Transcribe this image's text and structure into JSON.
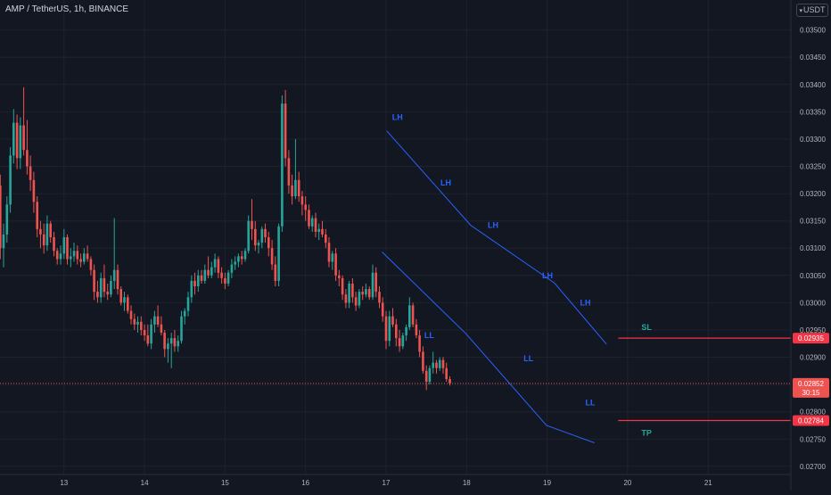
{
  "header": {
    "symbol_line": "AMP / TetherUS, 1h, BINANCE",
    "currency_label": "USDT"
  },
  "colors": {
    "background": "#131722",
    "up": "#26a69a",
    "down": "#ef5350",
    "text": "#b2b5be",
    "grid": "#1e222d",
    "channel": "#2962ff",
    "annotation_blue": "#2962ff",
    "sl_tp_label": "#26a69a",
    "level_line": "#f23645"
  },
  "chart_data": {
    "type": "candlestick",
    "symbol": "AMP / TetherUS",
    "interval": "1h",
    "exchange": "BINANCE",
    "ylim": [
      0.02685,
      0.03555
    ],
    "y_ticks": [
      "0.03500",
      "0.03450",
      "0.03400",
      "0.03350",
      "0.03300",
      "0.03250",
      "0.03200",
      "0.03150",
      "0.03100",
      "0.03050",
      "0.03000",
      "0.02950",
      "0.02900",
      "0.02850",
      "0.02800",
      "0.02750",
      "0.02700"
    ],
    "x_ticks": [
      "13",
      "14",
      "15",
      "16",
      "17",
      "18",
      "19",
      "20",
      "21"
    ],
    "x_tick_hours": [
      20,
      44,
      68,
      92,
      116,
      140,
      164,
      188,
      212
    ],
    "candles": [
      [
        0.03185,
        0.03225,
        0.03145,
        0.03215
      ],
      [
        0.03215,
        0.03235,
        0.0308,
        0.031
      ],
      [
        0.031,
        0.03145,
        0.03065,
        0.03125
      ],
      [
        0.03125,
        0.03195,
        0.0311,
        0.0318
      ],
      [
        0.0318,
        0.03285,
        0.03165,
        0.0327
      ],
      [
        0.0327,
        0.03355,
        0.03255,
        0.0333
      ],
      [
        0.0333,
        0.03345,
        0.03245,
        0.03265
      ],
      [
        0.03265,
        0.0334,
        0.03245,
        0.03325
      ],
      [
        0.03325,
        0.03395,
        0.0327,
        0.0328
      ],
      [
        0.0328,
        0.03335,
        0.03235,
        0.0325
      ],
      [
        0.0325,
        0.0327,
        0.03205,
        0.03225
      ],
      [
        0.03225,
        0.0324,
        0.03165,
        0.03185
      ],
      [
        0.03185,
        0.03195,
        0.0312,
        0.03135
      ],
      [
        0.03135,
        0.0315,
        0.031,
        0.03125
      ],
      [
        0.03125,
        0.03145,
        0.0309,
        0.03105
      ],
      [
        0.03105,
        0.0316,
        0.03095,
        0.03145
      ],
      [
        0.03145,
        0.0315,
        0.0311,
        0.0312
      ],
      [
        0.0312,
        0.0313,
        0.03085,
        0.03095
      ],
      [
        0.03095,
        0.031,
        0.0307,
        0.0308
      ],
      [
        0.0308,
        0.03105,
        0.0307,
        0.0309
      ],
      [
        0.0309,
        0.03135,
        0.0308,
        0.0312
      ],
      [
        0.0312,
        0.03125,
        0.0307,
        0.0308
      ],
      [
        0.0308,
        0.031,
        0.03065,
        0.03085
      ],
      [
        0.03085,
        0.0311,
        0.03075,
        0.03095
      ],
      [
        0.03095,
        0.03105,
        0.0307,
        0.0308
      ],
      [
        0.0308,
        0.0309,
        0.03065,
        0.03075
      ],
      [
        0.03075,
        0.031,
        0.0307,
        0.0309
      ],
      [
        0.0309,
        0.03105,
        0.03075,
        0.0308
      ],
      [
        0.0308,
        0.03085,
        0.0305,
        0.0306
      ],
      [
        0.0306,
        0.0307,
        0.03005,
        0.0302
      ],
      [
        0.0302,
        0.0304,
        0.03,
        0.0301
      ],
      [
        0.0301,
        0.03055,
        0.03,
        0.03045
      ],
      [
        0.03045,
        0.0307,
        0.0301,
        0.0302
      ],
      [
        0.0302,
        0.03035,
        0.03005,
        0.03015
      ],
      [
        0.03015,
        0.0305,
        0.0301,
        0.0304
      ],
      [
        0.0304,
        0.03155,
        0.03025,
        0.0306
      ],
      [
        0.0306,
        0.0307,
        0.03015,
        0.03025
      ],
      [
        0.03025,
        0.0303,
        0.02995,
        0.03
      ],
      [
        0.03,
        0.0302,
        0.02985,
        0.0301
      ],
      [
        0.0301,
        0.03015,
        0.0298,
        0.02985
      ],
      [
        0.02985,
        0.02995,
        0.0296,
        0.0297
      ],
      [
        0.0297,
        0.0298,
        0.0295,
        0.0296
      ],
      [
        0.0296,
        0.02975,
        0.02945,
        0.02965
      ],
      [
        0.02965,
        0.02975,
        0.0294,
        0.0295
      ],
      [
        0.0295,
        0.0296,
        0.0293,
        0.0294
      ],
      [
        0.0294,
        0.0296,
        0.0292,
        0.02925
      ],
      [
        0.02925,
        0.0297,
        0.02915,
        0.0296
      ],
      [
        0.0296,
        0.02985,
        0.02945,
        0.02975
      ],
      [
        0.02975,
        0.02995,
        0.02955,
        0.0296
      ],
      [
        0.0296,
        0.02975,
        0.0294,
        0.02945
      ],
      [
        0.02945,
        0.0295,
        0.029,
        0.02915
      ],
      [
        0.02915,
        0.02935,
        0.0289,
        0.02925
      ],
      [
        0.02925,
        0.02945,
        0.0288,
        0.02935
      ],
      [
        0.02935,
        0.0295,
        0.0291,
        0.0292
      ],
      [
        0.0292,
        0.0294,
        0.0291,
        0.0293
      ],
      [
        0.0293,
        0.02985,
        0.02925,
        0.02975
      ],
      [
        0.02975,
        0.0299,
        0.0296,
        0.02985
      ],
      [
        0.02985,
        0.0302,
        0.02975,
        0.0301
      ],
      [
        0.0301,
        0.0305,
        0.03,
        0.0304
      ],
      [
        0.0304,
        0.03055,
        0.03015,
        0.0303
      ],
      [
        0.0303,
        0.0306,
        0.0302,
        0.0305
      ],
      [
        0.0305,
        0.0306,
        0.03035,
        0.0304
      ],
      [
        0.0304,
        0.0307,
        0.03035,
        0.0306
      ],
      [
        0.0306,
        0.03085,
        0.03045,
        0.0305
      ],
      [
        0.0305,
        0.03075,
        0.03045,
        0.03065
      ],
      [
        0.03065,
        0.0309,
        0.03055,
        0.0308
      ],
      [
        0.0308,
        0.03085,
        0.03045,
        0.03055
      ],
      [
        0.03055,
        0.03065,
        0.03035,
        0.03045
      ],
      [
        0.03045,
        0.03055,
        0.03025,
        0.03035
      ],
      [
        0.03035,
        0.0306,
        0.0303,
        0.03055
      ],
      [
        0.03055,
        0.0308,
        0.03045,
        0.0307
      ],
      [
        0.0307,
        0.03085,
        0.0306,
        0.03075
      ],
      [
        0.03075,
        0.0309,
        0.03065,
        0.03085
      ],
      [
        0.03085,
        0.03095,
        0.0307,
        0.0308
      ],
      [
        0.0308,
        0.031,
        0.03075,
        0.03095
      ],
      [
        0.03095,
        0.0316,
        0.0309,
        0.0315
      ],
      [
        0.0315,
        0.0319,
        0.03115,
        0.03135
      ],
      [
        0.03135,
        0.0315,
        0.03095,
        0.03105
      ],
      [
        0.03105,
        0.03115,
        0.0309,
        0.0311
      ],
      [
        0.0311,
        0.0314,
        0.031,
        0.03135
      ],
      [
        0.03135,
        0.03145,
        0.0311,
        0.0312
      ],
      [
        0.0312,
        0.0313,
        0.03085,
        0.031
      ],
      [
        0.031,
        0.03115,
        0.0306,
        0.0307
      ],
      [
        0.0307,
        0.03085,
        0.0303,
        0.0304
      ],
      [
        0.0304,
        0.03145,
        0.0303,
        0.0314
      ],
      [
        0.0314,
        0.0338,
        0.0313,
        0.03365
      ],
      [
        0.03365,
        0.0339,
        0.0325,
        0.03265
      ],
      [
        0.03265,
        0.0328,
        0.032,
        0.03215
      ],
      [
        0.03215,
        0.03235,
        0.0318,
        0.03195
      ],
      [
        0.03195,
        0.033,
        0.0319,
        0.03225
      ],
      [
        0.03225,
        0.0324,
        0.03185,
        0.03195
      ],
      [
        0.03195,
        0.03205,
        0.0316,
        0.0318
      ],
      [
        0.0318,
        0.03195,
        0.0315,
        0.0317
      ],
      [
        0.0317,
        0.0318,
        0.03135,
        0.0314
      ],
      [
        0.0314,
        0.0316,
        0.0313,
        0.03155
      ],
      [
        0.03155,
        0.03165,
        0.0312,
        0.0313
      ],
      [
        0.0313,
        0.03145,
        0.03115,
        0.03135
      ],
      [
        0.03135,
        0.0315,
        0.0312,
        0.03125
      ],
      [
        0.03125,
        0.03135,
        0.031,
        0.0311
      ],
      [
        0.0311,
        0.0312,
        0.03065,
        0.03075
      ],
      [
        0.03075,
        0.03095,
        0.0306,
        0.0309
      ],
      [
        0.0309,
        0.031,
        0.0304,
        0.0305
      ],
      [
        0.0305,
        0.0306,
        0.0303,
        0.03045
      ],
      [
        0.03045,
        0.0305,
        0.03005,
        0.03015
      ],
      [
        0.03015,
        0.03025,
        0.0299,
        0.03
      ],
      [
        0.03,
        0.0304,
        0.0299,
        0.03035
      ],
      [
        0.03035,
        0.03045,
        0.03,
        0.0301
      ],
      [
        0.0301,
        0.0302,
        0.02985,
        0.02995
      ],
      [
        0.02995,
        0.03025,
        0.0299,
        0.0302
      ],
      [
        0.0302,
        0.0303,
        0.03005,
        0.03015
      ],
      [
        0.03015,
        0.03035,
        0.0301,
        0.03025
      ],
      [
        0.03025,
        0.0303,
        0.03005,
        0.0301
      ],
      [
        0.0301,
        0.0307,
        0.03005,
        0.03055
      ],
      [
        0.03055,
        0.03065,
        0.0301,
        0.0302
      ],
      [
        0.0302,
        0.0303,
        0.0299,
        0.03
      ],
      [
        0.03,
        0.0301,
        0.02965,
        0.02975
      ],
      [
        0.02975,
        0.02985,
        0.02915,
        0.0293
      ],
      [
        0.0293,
        0.02985,
        0.0292,
        0.02975
      ],
      [
        0.02975,
        0.0299,
        0.02955,
        0.0296
      ],
      [
        0.0296,
        0.0297,
        0.0292,
        0.02935
      ],
      [
        0.02935,
        0.0295,
        0.0291,
        0.0292
      ],
      [
        0.0292,
        0.02945,
        0.02915,
        0.0294
      ],
      [
        0.0294,
        0.0296,
        0.0293,
        0.02955
      ],
      [
        0.02955,
        0.0301,
        0.0295,
        0.02995
      ],
      [
        0.02995,
        0.03,
        0.02955,
        0.0296
      ],
      [
        0.0296,
        0.0297,
        0.02935,
        0.0294
      ],
      [
        0.0294,
        0.0295,
        0.029,
        0.0291
      ],
      [
        0.0291,
        0.0292,
        0.0287,
        0.02875
      ],
      [
        0.02875,
        0.02885,
        0.0284,
        0.02855
      ],
      [
        0.02855,
        0.02885,
        0.0285,
        0.0288
      ],
      [
        0.0288,
        0.0291,
        0.0287,
        0.0289
      ],
      [
        0.0289,
        0.02895,
        0.0287,
        0.0288
      ],
      [
        0.0288,
        0.029,
        0.02875,
        0.02895
      ],
      [
        0.02895,
        0.029,
        0.0287,
        0.0288
      ],
      [
        0.0288,
        0.0289,
        0.02855,
        0.0286
      ],
      [
        0.0286,
        0.02865,
        0.02848,
        0.02852
      ]
    ],
    "channel_upper": [
      [
        116.2,
        0.03315
      ],
      [
        141.2,
        0.03142
      ],
      [
        166.2,
        0.03036
      ],
      [
        181.7,
        0.02924
      ]
    ],
    "channel_lower": [
      [
        114.8,
        0.03093
      ],
      [
        139.8,
        0.02943
      ],
      [
        163.8,
        0.02775
      ],
      [
        178.1,
        0.02743
      ]
    ],
    "annotations": [
      {
        "text": "LH",
        "hour": 117.8,
        "price": 0.03335
      },
      {
        "text": "LH",
        "hour": 132.2,
        "price": 0.03215
      },
      {
        "text": "LH",
        "hour": 146.3,
        "price": 0.03137
      },
      {
        "text": "LH",
        "hour": 162.5,
        "price": 0.03045
      },
      {
        "text": "LH",
        "hour": 173.8,
        "price": 0.02995
      },
      {
        "text": "LL",
        "hour": 127.4,
        "price": 0.02935
      },
      {
        "text": "LL",
        "hour": 157.0,
        "price": 0.02893
      },
      {
        "text": "LL",
        "hour": 175.4,
        "price": 0.02812
      }
    ],
    "levels": [
      {
        "label": "SL",
        "price": 0.02935,
        "start_hour": 185.2
      },
      {
        "label": "TP",
        "price": 0.02784,
        "start_hour": 185.2
      }
    ],
    "last_price": {
      "value": "0.02852",
      "countdown": "30:15",
      "price": 0.02852
    }
  }
}
